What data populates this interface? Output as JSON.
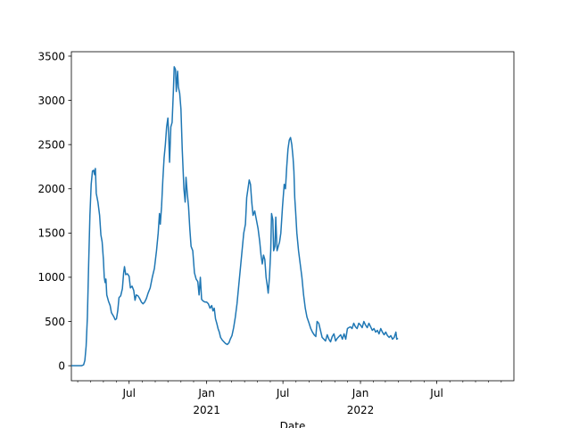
{
  "chart_data": {
    "type": "line",
    "title": "",
    "xlabel": "Date",
    "ylabel": "",
    "xlim": [
      "2020-02-15",
      "2022-12-31"
    ],
    "ylim": [
      -170,
      3550
    ],
    "grid": false,
    "legend": "none",
    "y_ticks": [
      0,
      500,
      1000,
      1500,
      2000,
      2500,
      3000,
      3500
    ],
    "x_major_ticks": [
      {
        "date": "2020-07-01",
        "label": "Jul",
        "year_label": ""
      },
      {
        "date": "2021-01-01",
        "label": "Jan",
        "year_label": "2021"
      },
      {
        "date": "2021-07-01",
        "label": "Jul",
        "year_label": ""
      },
      {
        "date": "2022-01-01",
        "label": "Jan",
        "year_label": "2022"
      },
      {
        "date": "2022-07-01",
        "label": "Jul",
        "year_label": ""
      }
    ],
    "x_minor_ticks": [
      "2020-03-01",
      "2020-04-01",
      "2020-05-01",
      "2020-06-01",
      "2020-08-01",
      "2020-09-01",
      "2020-10-01",
      "2020-11-01",
      "2020-12-01",
      "2021-02-01",
      "2021-03-01",
      "2021-04-01",
      "2021-05-01",
      "2021-06-01",
      "2021-08-01",
      "2021-09-01",
      "2021-10-01",
      "2021-11-01",
      "2021-12-01",
      "2022-02-01",
      "2022-03-01",
      "2022-04-01",
      "2022-05-01",
      "2022-06-01",
      "2022-08-01",
      "2022-09-01",
      "2022-10-01",
      "2022-11-01",
      "2022-12-01"
    ],
    "series": [
      {
        "name": "",
        "color": "#1f77b4",
        "points": [
          [
            "2020-02-15",
            0
          ],
          [
            "2020-03-10",
            0
          ],
          [
            "2020-03-15",
            10
          ],
          [
            "2020-03-18",
            60
          ],
          [
            "2020-03-21",
            220
          ],
          [
            "2020-03-24",
            550
          ],
          [
            "2020-03-27",
            1150
          ],
          [
            "2020-03-30",
            1700
          ],
          [
            "2020-04-02",
            2050
          ],
          [
            "2020-04-05",
            2200
          ],
          [
            "2020-04-08",
            2210
          ],
          [
            "2020-04-10",
            2160
          ],
          [
            "2020-04-12",
            2230
          ],
          [
            "2020-04-14",
            1950
          ],
          [
            "2020-04-18",
            1850
          ],
          [
            "2020-04-22",
            1700
          ],
          [
            "2020-04-25",
            1480
          ],
          [
            "2020-04-28",
            1400
          ],
          [
            "2020-05-01",
            1200
          ],
          [
            "2020-05-03",
            1000
          ],
          [
            "2020-05-05",
            940
          ],
          [
            "2020-05-07",
            980
          ],
          [
            "2020-05-09",
            800
          ],
          [
            "2020-05-13",
            730
          ],
          [
            "2020-05-17",
            680
          ],
          [
            "2020-05-20",
            600
          ],
          [
            "2020-05-25",
            560
          ],
          [
            "2020-05-29",
            520
          ],
          [
            "2020-06-01",
            530
          ],
          [
            "2020-06-04",
            620
          ],
          [
            "2020-06-07",
            770
          ],
          [
            "2020-06-11",
            790
          ],
          [
            "2020-06-15",
            870
          ],
          [
            "2020-06-18",
            1050
          ],
          [
            "2020-06-20",
            1120
          ],
          [
            "2020-06-23",
            1030
          ],
          [
            "2020-06-27",
            1040
          ],
          [
            "2020-07-01",
            1010
          ],
          [
            "2020-07-04",
            880
          ],
          [
            "2020-07-08",
            900
          ],
          [
            "2020-07-12",
            850
          ],
          [
            "2020-07-15",
            740
          ],
          [
            "2020-07-18",
            800
          ],
          [
            "2020-07-22",
            790
          ],
          [
            "2020-07-26",
            760
          ],
          [
            "2020-07-30",
            720
          ],
          [
            "2020-08-03",
            700
          ],
          [
            "2020-08-07",
            720
          ],
          [
            "2020-08-11",
            760
          ],
          [
            "2020-08-15",
            820
          ],
          [
            "2020-08-20",
            880
          ],
          [
            "2020-08-25",
            1000
          ],
          [
            "2020-08-30",
            1100
          ],
          [
            "2020-09-04",
            1300
          ],
          [
            "2020-09-08",
            1500
          ],
          [
            "2020-09-11",
            1720
          ],
          [
            "2020-09-13",
            1600
          ],
          [
            "2020-09-16",
            1800
          ],
          [
            "2020-09-19",
            2100
          ],
          [
            "2020-09-22",
            2350
          ],
          [
            "2020-09-25",
            2500
          ],
          [
            "2020-09-28",
            2700
          ],
          [
            "2020-10-01",
            2800
          ],
          [
            "2020-10-03",
            2600
          ],
          [
            "2020-10-05",
            2300
          ],
          [
            "2020-10-08",
            2700
          ],
          [
            "2020-10-11",
            2750
          ],
          [
            "2020-10-14",
            3100
          ],
          [
            "2020-10-16",
            3380
          ],
          [
            "2020-10-19",
            3350
          ],
          [
            "2020-10-21",
            3100
          ],
          [
            "2020-10-24",
            3330
          ],
          [
            "2020-10-26",
            3150
          ],
          [
            "2020-10-29",
            3080
          ],
          [
            "2020-11-01",
            2900
          ],
          [
            "2020-11-04",
            2450
          ],
          [
            "2020-11-08",
            2000
          ],
          [
            "2020-11-11",
            1850
          ],
          [
            "2020-11-13",
            2130
          ],
          [
            "2020-11-16",
            1950
          ],
          [
            "2020-11-19",
            1800
          ],
          [
            "2020-11-22",
            1550
          ],
          [
            "2020-11-25",
            1350
          ],
          [
            "2020-11-29",
            1300
          ],
          [
            "2020-12-03",
            1050
          ],
          [
            "2020-12-07",
            980
          ],
          [
            "2020-12-11",
            950
          ],
          [
            "2020-12-14",
            800
          ],
          [
            "2020-12-17",
            1000
          ],
          [
            "2020-12-20",
            750
          ],
          [
            "2020-12-24",
            730
          ],
          [
            "2020-12-28",
            720
          ],
          [
            "2021-01-01",
            720
          ],
          [
            "2021-01-05",
            700
          ],
          [
            "2021-01-09",
            650
          ],
          [
            "2021-01-13",
            680
          ],
          [
            "2021-01-16",
            620
          ],
          [
            "2021-01-19",
            650
          ],
          [
            "2021-01-22",
            530
          ],
          [
            "2021-01-25",
            480
          ],
          [
            "2021-01-28",
            420
          ],
          [
            "2021-01-31",
            380
          ],
          [
            "2021-02-03",
            320
          ],
          [
            "2021-02-07",
            290
          ],
          [
            "2021-02-11",
            270
          ],
          [
            "2021-02-15",
            250
          ],
          [
            "2021-02-19",
            240
          ],
          [
            "2021-02-23",
            260
          ],
          [
            "2021-02-26",
            300
          ],
          [
            "2021-03-02",
            340
          ],
          [
            "2021-03-06",
            430
          ],
          [
            "2021-03-10",
            550
          ],
          [
            "2021-03-14",
            700
          ],
          [
            "2021-03-18",
            900
          ],
          [
            "2021-03-22",
            1100
          ],
          [
            "2021-03-26",
            1300
          ],
          [
            "2021-03-30",
            1500
          ],
          [
            "2021-04-03",
            1600
          ],
          [
            "2021-04-06",
            1900
          ],
          [
            "2021-04-09",
            2000
          ],
          [
            "2021-04-12",
            2100
          ],
          [
            "2021-04-15",
            2050
          ],
          [
            "2021-04-18",
            1850
          ],
          [
            "2021-04-21",
            1700
          ],
          [
            "2021-04-25",
            1750
          ],
          [
            "2021-04-29",
            1650
          ],
          [
            "2021-05-03",
            1550
          ],
          [
            "2021-05-07",
            1400
          ],
          [
            "2021-05-10",
            1250
          ],
          [
            "2021-05-13",
            1150
          ],
          [
            "2021-05-16",
            1250
          ],
          [
            "2021-05-19",
            1200
          ],
          [
            "2021-05-22",
            1000
          ],
          [
            "2021-05-25",
            900
          ],
          [
            "2021-05-27",
            820
          ],
          [
            "2021-05-30",
            1000
          ],
          [
            "2021-06-02",
            1300
          ],
          [
            "2021-06-04",
            1720
          ],
          [
            "2021-06-07",
            1650
          ],
          [
            "2021-06-09",
            1300
          ],
          [
            "2021-06-12",
            1350
          ],
          [
            "2021-06-14",
            1680
          ],
          [
            "2021-06-17",
            1300
          ],
          [
            "2021-06-20",
            1350
          ],
          [
            "2021-06-23",
            1400
          ],
          [
            "2021-06-26",
            1500
          ],
          [
            "2021-06-30",
            1800
          ],
          [
            "2021-07-04",
            2050
          ],
          [
            "2021-07-07",
            2000
          ],
          [
            "2021-07-10",
            2250
          ],
          [
            "2021-07-13",
            2450
          ],
          [
            "2021-07-16",
            2550
          ],
          [
            "2021-07-19",
            2580
          ],
          [
            "2021-07-22",
            2500
          ],
          [
            "2021-07-25",
            2350
          ],
          [
            "2021-07-27",
            2200
          ],
          [
            "2021-07-29",
            1900
          ],
          [
            "2021-07-31",
            1750
          ],
          [
            "2021-08-03",
            1500
          ],
          [
            "2021-08-07",
            1300
          ],
          [
            "2021-08-11",
            1150
          ],
          [
            "2021-08-15",
            1000
          ],
          [
            "2021-08-19",
            800
          ],
          [
            "2021-08-23",
            650
          ],
          [
            "2021-08-27",
            550
          ],
          [
            "2021-09-01",
            480
          ],
          [
            "2021-09-05",
            420
          ],
          [
            "2021-09-09",
            380
          ],
          [
            "2021-09-13",
            350
          ],
          [
            "2021-09-17",
            330
          ],
          [
            "2021-09-20",
            500
          ],
          [
            "2021-09-24",
            480
          ],
          [
            "2021-09-28",
            400
          ],
          [
            "2021-10-02",
            320
          ],
          [
            "2021-10-06",
            300
          ],
          [
            "2021-10-10",
            280
          ],
          [
            "2021-10-14",
            350
          ],
          [
            "2021-10-18",
            300
          ],
          [
            "2021-10-22",
            270
          ],
          [
            "2021-10-26",
            330
          ],
          [
            "2021-10-30",
            360
          ],
          [
            "2021-11-03",
            280
          ],
          [
            "2021-11-07",
            310
          ],
          [
            "2021-11-11",
            330
          ],
          [
            "2021-11-15",
            350
          ],
          [
            "2021-11-19",
            300
          ],
          [
            "2021-11-23",
            360
          ],
          [
            "2021-11-27",
            300
          ],
          [
            "2021-12-01",
            420
          ],
          [
            "2021-12-04",
            430
          ],
          [
            "2021-12-08",
            440
          ],
          [
            "2021-12-12",
            420
          ],
          [
            "2021-12-16",
            480
          ],
          [
            "2021-12-20",
            440
          ],
          [
            "2021-12-24",
            420
          ],
          [
            "2021-12-28",
            480
          ],
          [
            "2022-01-01",
            460
          ],
          [
            "2022-01-05",
            430
          ],
          [
            "2022-01-09",
            500
          ],
          [
            "2022-01-13",
            460
          ],
          [
            "2022-01-17",
            430
          ],
          [
            "2022-01-21",
            480
          ],
          [
            "2022-01-25",
            440
          ],
          [
            "2022-01-29",
            400
          ],
          [
            "2022-02-02",
            420
          ],
          [
            "2022-02-06",
            380
          ],
          [
            "2022-02-10",
            400
          ],
          [
            "2022-02-14",
            360
          ],
          [
            "2022-02-18",
            420
          ],
          [
            "2022-02-22",
            380
          ],
          [
            "2022-02-26",
            350
          ],
          [
            "2022-03-02",
            380
          ],
          [
            "2022-03-06",
            340
          ],
          [
            "2022-03-10",
            320
          ],
          [
            "2022-03-14",
            340
          ],
          [
            "2022-03-18",
            300
          ],
          [
            "2022-03-22",
            320
          ],
          [
            "2022-03-26",
            380
          ],
          [
            "2022-03-28",
            300
          ],
          [
            "2022-03-31",
            310
          ]
        ]
      }
    ]
  }
}
